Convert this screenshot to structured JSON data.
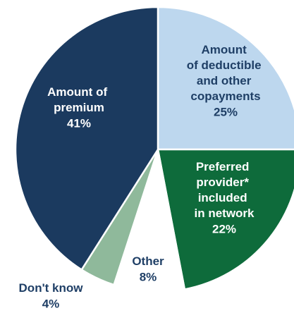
{
  "chart_data": {
    "type": "pie",
    "categories": [
      "Amount of deductible and other copayments",
      "Preferred provider* included in network",
      "Other",
      "Don't know",
      "Amount of premium"
    ],
    "values": [
      25,
      22,
      8,
      4,
      41
    ],
    "value_labels": [
      "25%",
      "22%",
      "8%",
      "4%",
      "41%"
    ],
    "colors": [
      "#bdd7ee",
      "#0e6b3b",
      "#ffffff",
      "#8fb99b",
      "#1b3a5f"
    ]
  }
}
